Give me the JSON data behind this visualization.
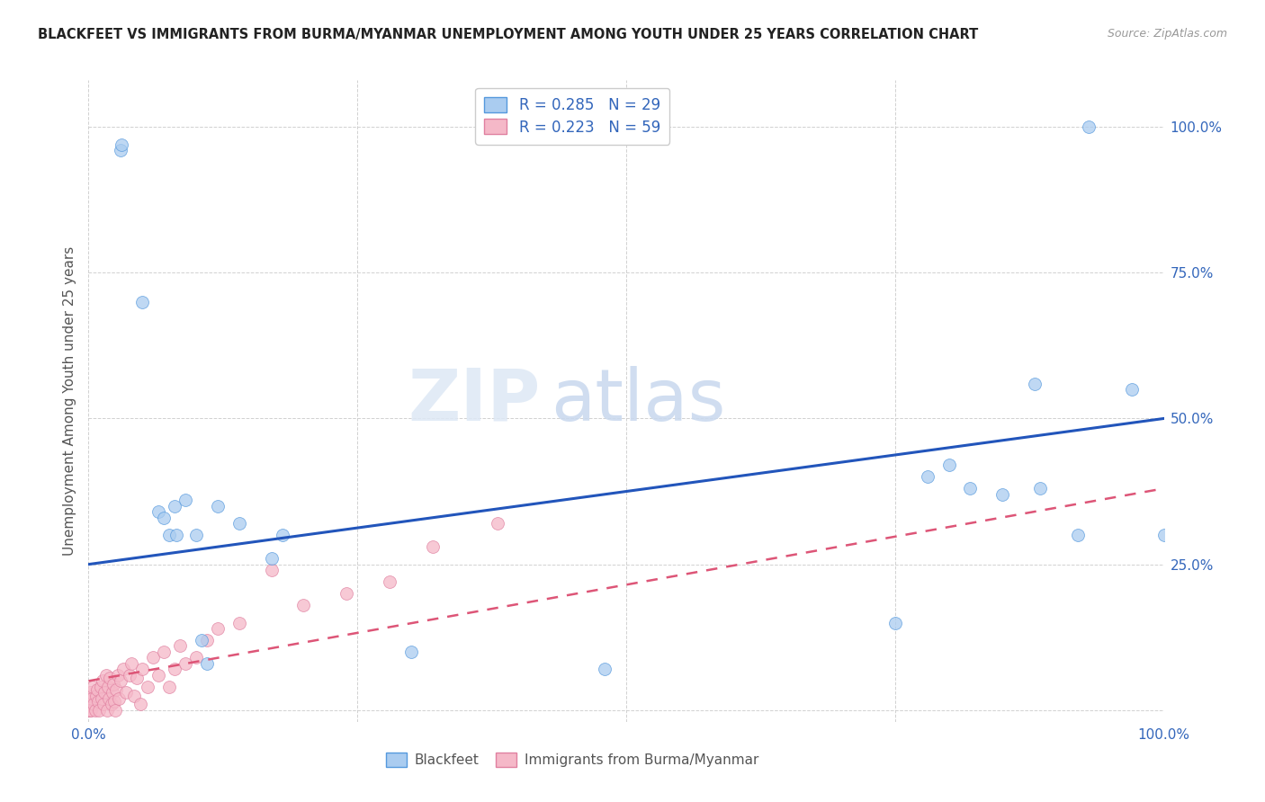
{
  "title": "BLACKFEET VS IMMIGRANTS FROM BURMA/MYANMAR UNEMPLOYMENT AMONG YOUTH UNDER 25 YEARS CORRELATION CHART",
  "source": "Source: ZipAtlas.com",
  "ylabel": "Unemployment Among Youth under 25 years",
  "xlim": [
    0.0,
    1.0
  ],
  "ylim": [
    -0.02,
    1.08
  ],
  "blue_R": 0.285,
  "blue_N": 29,
  "pink_R": 0.223,
  "pink_N": 59,
  "legend_label_blue": "Blackfeet",
  "legend_label_pink": "Immigrants from Burma/Myanmar",
  "blue_color": "#aaccf0",
  "blue_edge_color": "#5599dd",
  "blue_line_color": "#2255bb",
  "pink_color": "#f5b8c8",
  "pink_edge_color": "#e080a0",
  "pink_line_color": "#dd5577",
  "watermark_zip": "ZIP",
  "watermark_atlas": "atlas",
  "blue_scatter_x": [
    0.03,
    0.031,
    0.05,
    0.065,
    0.07,
    0.075,
    0.08,
    0.082,
    0.09,
    0.1,
    0.105,
    0.11,
    0.12,
    0.14,
    0.17,
    0.18,
    0.3,
    0.48,
    0.75,
    0.78,
    0.8,
    0.82,
    0.85,
    0.88,
    0.885,
    0.92,
    0.93,
    0.97,
    1.0
  ],
  "blue_scatter_y": [
    0.96,
    0.97,
    0.7,
    0.34,
    0.33,
    0.3,
    0.35,
    0.3,
    0.36,
    0.3,
    0.12,
    0.08,
    0.35,
    0.32,
    0.26,
    0.3,
    0.1,
    0.07,
    0.15,
    0.4,
    0.42,
    0.38,
    0.37,
    0.56,
    0.38,
    0.3,
    1.0,
    0.55,
    0.3
  ],
  "pink_scatter_x": [
    0.0,
    0.0,
    0.0,
    0.001,
    0.001,
    0.002,
    0.003,
    0.004,
    0.005,
    0.006,
    0.007,
    0.008,
    0.009,
    0.01,
    0.011,
    0.012,
    0.013,
    0.014,
    0.015,
    0.016,
    0.017,
    0.018,
    0.019,
    0.02,
    0.021,
    0.022,
    0.023,
    0.024,
    0.025,
    0.026,
    0.027,
    0.028,
    0.03,
    0.032,
    0.035,
    0.038,
    0.04,
    0.042,
    0.045,
    0.048,
    0.05,
    0.055,
    0.06,
    0.065,
    0.07,
    0.075,
    0.08,
    0.085,
    0.09,
    0.1,
    0.11,
    0.12,
    0.14,
    0.17,
    0.2,
    0.24,
    0.28,
    0.32,
    0.38
  ],
  "pink_scatter_y": [
    0.0,
    0.015,
    0.025,
    0.0,
    0.03,
    0.0,
    0.02,
    0.04,
    0.01,
    0.0,
    0.025,
    0.035,
    0.015,
    0.0,
    0.04,
    0.02,
    0.05,
    0.01,
    0.03,
    0.06,
    0.0,
    0.04,
    0.02,
    0.055,
    0.01,
    0.03,
    0.045,
    0.015,
    0.0,
    0.035,
    0.06,
    0.02,
    0.05,
    0.07,
    0.03,
    0.06,
    0.08,
    0.025,
    0.055,
    0.01,
    0.07,
    0.04,
    0.09,
    0.06,
    0.1,
    0.04,
    0.07,
    0.11,
    0.08,
    0.09,
    0.12,
    0.14,
    0.15,
    0.24,
    0.18,
    0.2,
    0.22,
    0.28,
    0.32
  ],
  "blue_trend_x": [
    0.0,
    1.0
  ],
  "blue_trend_y": [
    0.25,
    0.5
  ],
  "pink_trend_x": [
    0.0,
    1.0
  ],
  "pink_trend_y": [
    0.05,
    0.38
  ]
}
